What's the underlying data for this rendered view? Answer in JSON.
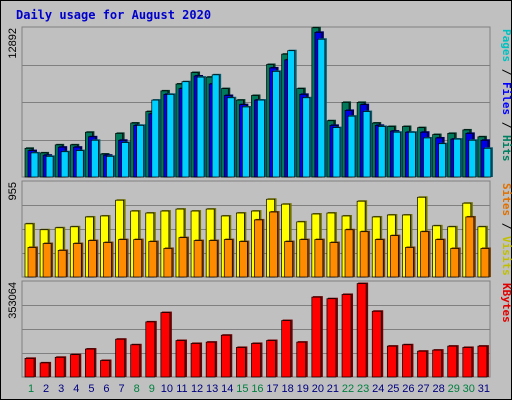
{
  "chart_data": {
    "type": "bar",
    "title": "Daily usage for August 2020",
    "days": [
      "1",
      "2",
      "3",
      "4",
      "5",
      "6",
      "7",
      "8",
      "9",
      "10",
      "11",
      "12",
      "13",
      "14",
      "15",
      "16",
      "17",
      "18",
      "19",
      "20",
      "21",
      "22",
      "23",
      "24",
      "25",
      "26",
      "27",
      "28",
      "29",
      "30",
      "31"
    ],
    "weekend_days": [
      1,
      8,
      9,
      15,
      16,
      22,
      23,
      29,
      30
    ],
    "panels": [
      {
        "id": "top",
        "max_label": "12892",
        "ymax": 12892,
        "legend": [
          {
            "text": "Pages",
            "color": "#00c0c0"
          },
          {
            "text": " / ",
            "color": "#000000"
          },
          {
            "text": "Files",
            "color": "#0000ff"
          },
          {
            "text": " / ",
            "color": "#000000"
          },
          {
            "text": "Hits",
            "color": "#008060"
          }
        ],
        "series": [
          {
            "name": "Hits",
            "color": "#007a5a",
            "values": [
              2500,
              2100,
              2800,
              2800,
              3900,
              2000,
              3800,
              4700,
              5700,
              7500,
              8100,
              9100,
              8700,
              7700,
              6700,
              7100,
              9800,
              10700,
              7700,
              13000,
              4900,
              6500,
              6500,
              4700,
              4400,
              4400,
              4300,
              3700,
              3800,
              4100,
              3500
            ]
          },
          {
            "name": "Files",
            "color": "#0000e8",
            "values": [
              2300,
              1900,
              2600,
              2600,
              3500,
              1900,
              3200,
              4500,
              5500,
              7200,
              7700,
              8800,
              8100,
              7100,
              6300,
              6700,
              9500,
              10200,
              7200,
              12600,
              4500,
              5800,
              6300,
              4500,
              4000,
              3900,
              3900,
              3400,
              3300,
              3800,
              3200
            ]
          },
          {
            "name": "Pages",
            "color": "#00d0ff",
            "values": [
              2100,
              1800,
              2200,
              2300,
              3200,
              1800,
              3000,
              4500,
              6700,
              7200,
              8300,
              8700,
              8900,
              6900,
              6100,
              6700,
              9200,
              11000,
              6900,
              12000,
              4300,
              5300,
              5700,
              4400,
              3900,
              3900,
              3400,
              2900,
              3300,
              3200,
              2500
            ]
          }
        ]
      },
      {
        "id": "middle",
        "max_label": "955",
        "ymax": 955,
        "legend": [
          {
            "text": "Sites",
            "color": "#e07000"
          },
          {
            "text": " / ",
            "color": "#000000"
          },
          {
            "text": "Visits",
            "color": "#c0c000"
          }
        ],
        "series": [
          {
            "name": "Visits",
            "color": "#ffff00",
            "values": [
              540,
              480,
              500,
              510,
              610,
              620,
              780,
              670,
              650,
              670,
              690,
              670,
              690,
              620,
              650,
              670,
              790,
              740,
              560,
              640,
              650,
              620,
              770,
              610,
              630,
              630,
              810,
              520,
              510,
              750,
              510
            ]
          },
          {
            "name": "Sites",
            "color": "#ff8c00",
            "values": [
              300,
              340,
              270,
              340,
              370,
              350,
              380,
              380,
              360,
              290,
              400,
              370,
              370,
              380,
              360,
              580,
              660,
              360,
              380,
              380,
              350,
              480,
              460,
              380,
              420,
              300,
              460,
              380,
              290,
              610,
              290
            ]
          }
        ]
      },
      {
        "id": "bottom",
        "max_label": "353064",
        "ymax": 353064,
        "legend": [
          {
            "text": "KBytes",
            "color": "#e00000"
          }
        ],
        "series": [
          {
            "name": "KBytes",
            "color": "#ff0000",
            "values": [
              70000,
              53000,
              74000,
              84000,
              105000,
              62000,
              142000,
              121000,
              207000,
              242000,
              137000,
              126000,
              131000,
              157000,
              111000,
              126000,
              137000,
              212000,
              131000,
              300000,
              294000,
              310000,
              351000,
              247000,
              116000,
              121000,
              97000,
              101000,
              116000,
              111000,
              116000
            ]
          }
        ]
      }
    ]
  }
}
